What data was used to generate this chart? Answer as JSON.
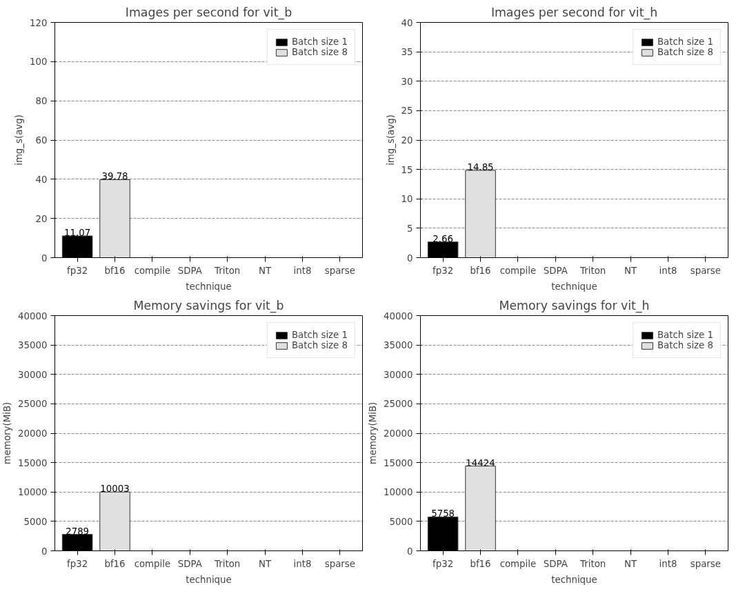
{
  "chart_data": [
    {
      "type": "bar",
      "title": "Images per second for vit_b",
      "xlabel": "technique",
      "ylabel": "img_s(avg)",
      "categories": [
        "fp32",
        "bf16",
        "compile",
        "SDPA",
        "Triton",
        "NT",
        "int8",
        "sparse"
      ],
      "series": [
        {
          "name": "Batch size 1",
          "color": "#000000",
          "values": [
            11.07,
            null,
            null,
            null,
            null,
            null,
            null,
            null
          ]
        },
        {
          "name": "Batch size 8",
          "color": "#e0e0e0",
          "values": [
            null,
            39.78,
            null,
            null,
            null,
            null,
            null,
            null
          ]
        }
      ],
      "ylim": [
        0,
        120
      ],
      "yticks": [
        0,
        20,
        40,
        60,
        80,
        100,
        120
      ],
      "grid": "y",
      "legend": "top right",
      "data_labels": true
    },
    {
      "type": "bar",
      "title": "Images per second for vit_h",
      "xlabel": "technique",
      "ylabel": "img_s(avg)",
      "categories": [
        "fp32",
        "bf16",
        "compile",
        "SDPA",
        "Triton",
        "NT",
        "int8",
        "sparse"
      ],
      "series": [
        {
          "name": "Batch size 1",
          "color": "#000000",
          "values": [
            2.66,
            null,
            null,
            null,
            null,
            null,
            null,
            null
          ]
        },
        {
          "name": "Batch size 8",
          "color": "#e0e0e0",
          "values": [
            null,
            14.85,
            null,
            null,
            null,
            null,
            null,
            null
          ]
        }
      ],
      "ylim": [
        0,
        40
      ],
      "yticks": [
        0,
        5,
        10,
        15,
        20,
        25,
        30,
        35,
        40
      ],
      "grid": "y",
      "legend": "top right",
      "data_labels": true
    },
    {
      "type": "bar",
      "title": "Memory savings for vit_b",
      "xlabel": "technique",
      "ylabel": "memory(MiB)",
      "categories": [
        "fp32",
        "bf16",
        "compile",
        "SDPA",
        "Triton",
        "NT",
        "int8",
        "sparse"
      ],
      "series": [
        {
          "name": "Batch size 1",
          "color": "#000000",
          "values": [
            2789,
            null,
            null,
            null,
            null,
            null,
            null,
            null
          ]
        },
        {
          "name": "Batch size 8",
          "color": "#e0e0e0",
          "values": [
            null,
            10003,
            null,
            null,
            null,
            null,
            null,
            null
          ]
        }
      ],
      "ylim": [
        0,
        40000
      ],
      "yticks": [
        0,
        5000,
        10000,
        15000,
        20000,
        25000,
        30000,
        35000,
        40000
      ],
      "grid": "y",
      "legend": "top right",
      "data_labels": true
    },
    {
      "type": "bar",
      "title": "Memory savings for vit_h",
      "xlabel": "technique",
      "ylabel": "memory(MiB)",
      "categories": [
        "fp32",
        "bf16",
        "compile",
        "SDPA",
        "Triton",
        "NT",
        "int8",
        "sparse"
      ],
      "series": [
        {
          "name": "Batch size 1",
          "color": "#000000",
          "values": [
            5758,
            null,
            null,
            null,
            null,
            null,
            null,
            null
          ]
        },
        {
          "name": "Batch size 8",
          "color": "#e0e0e0",
          "values": [
            null,
            14424,
            null,
            null,
            null,
            null,
            null,
            null
          ]
        }
      ],
      "ylim": [
        0,
        40000
      ],
      "yticks": [
        0,
        5000,
        10000,
        15000,
        20000,
        25000,
        30000,
        35000,
        40000
      ],
      "grid": "y",
      "legend": "top right",
      "data_labels": true
    }
  ]
}
